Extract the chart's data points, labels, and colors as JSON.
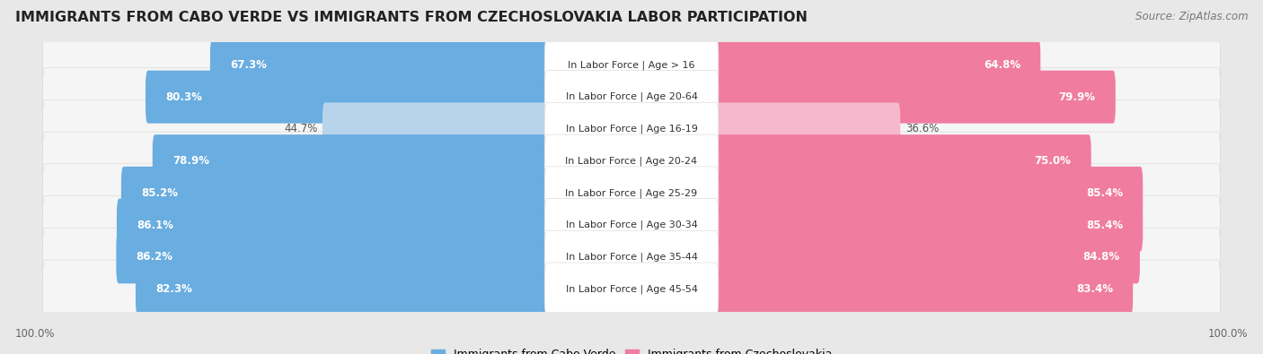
{
  "title": "IMMIGRANTS FROM CABO VERDE VS IMMIGRANTS FROM CZECHOSLOVAKIA LABOR PARTICIPATION",
  "source": "Source: ZipAtlas.com",
  "categories": [
    "In Labor Force | Age > 16",
    "In Labor Force | Age 20-64",
    "In Labor Force | Age 16-19",
    "In Labor Force | Age 20-24",
    "In Labor Force | Age 25-29",
    "In Labor Force | Age 30-34",
    "In Labor Force | Age 35-44",
    "In Labor Force | Age 45-54"
  ],
  "cabo_verde_values": [
    67.3,
    80.3,
    44.7,
    78.9,
    85.2,
    86.1,
    86.2,
    82.3
  ],
  "czechoslovakia_values": [
    64.8,
    79.9,
    36.6,
    75.0,
    85.4,
    85.4,
    84.8,
    83.4
  ],
  "cabo_verde_color": "#6aade0",
  "cabo_verde_color_light": "#b8d4ed",
  "czechoslovakia_color": "#f07ca0",
  "czechoslovakia_color_light": "#f5b8cc",
  "label_left": "Immigrants from Cabo Verde",
  "label_right": "Immigrants from Czechoslovakia",
  "bg_color": "#e8e8e8",
  "row_bg_color": "#f5f5f5",
  "axis_label_left": "100.0%",
  "axis_label_right": "100.0%",
  "title_fontsize": 11.5,
  "source_fontsize": 8.5,
  "bar_label_fontsize": 8.5,
  "category_fontsize": 8.0,
  "legend_fontsize": 9
}
